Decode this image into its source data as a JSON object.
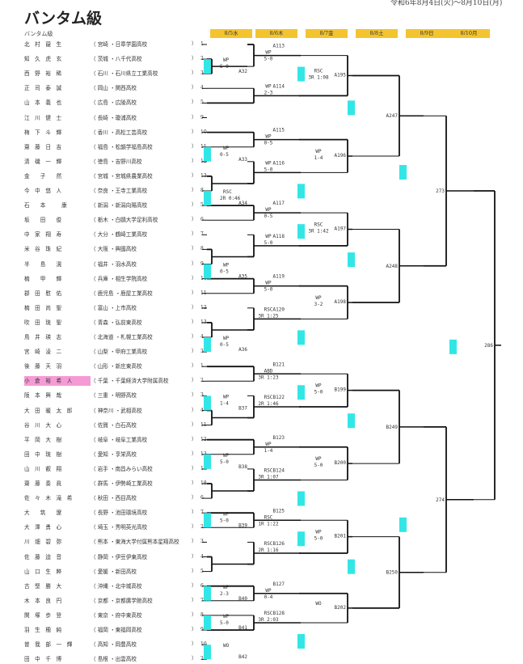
{
  "title": "バンタム級",
  "date_range": "令和6年8月4日(火)〜8月10日(月)",
  "weight_class_label": "バンタム級",
  "days": [
    "8/5水",
    "8/6木",
    "8/7金",
    "8/8土",
    "8/9日",
    "8/10月"
  ],
  "highlight_color": "#f49bd5",
  "marker_color": "#33e6e6",
  "entries": [
    {
      "name": "北　村　龍　生",
      "pref": "宮崎",
      "school": "日章学園高校",
      "seed": "1"
    },
    {
      "name": "知　久　虎　玄",
      "pref": "茨城",
      "school": "八千代高校",
      "seed": "2"
    },
    {
      "name": "西　野　裕　稀",
      "pref": "石川",
      "school": "石川県立工業高校",
      "seed": "3"
    },
    {
      "name": "正　司　泰　誠",
      "pref": "岡山",
      "school": "関西高校",
      "seed": "4"
    },
    {
      "name": "山　本　義　也",
      "pref": "広島",
      "school": "広陵高校",
      "seed": "5"
    },
    {
      "name": "江　川　健　士",
      "pref": "長崎",
      "school": "瓊浦高校",
      "seed": "9"
    },
    {
      "name": "梅　下　斗　輝",
      "pref": "香川",
      "school": "高松工芸高校",
      "seed": "10"
    },
    {
      "name": "齋　藤　日　吉",
      "pref": "福島",
      "school": "松韻学福島高校",
      "seed": "11"
    },
    {
      "name": "清　磯　一　輝",
      "pref": "徳島",
      "school": "吉野川高校",
      "seed": "12"
    },
    {
      "name": "金　　子　　然",
      "pref": "宮城",
      "school": "宮城県農業高校",
      "seed": "13"
    },
    {
      "name": "今　中　悠　人",
      "pref": "奈良",
      "school": "王寺工業高校",
      "seed": "8"
    },
    {
      "name": "石　　本　　　康",
      "pref": "新潟",
      "school": "新潟向陽高校",
      "seed": "5"
    },
    {
      "name": "坂　　田　　俊",
      "pref": "栃木",
      "school": "白鷗大学足利高校",
      "seed": "6"
    },
    {
      "name": "中　家　翔　寿",
      "pref": "大分",
      "school": "鶴崎工業高校",
      "seed": "7"
    },
    {
      "name": "米　谷　珠　紀",
      "pref": "大阪",
      "school": "興國高校",
      "seed": "8"
    },
    {
      "name": "半　　島　　滉",
      "pref": "福井",
      "school": "羽水高校",
      "seed": "9"
    },
    {
      "name": "楠　　甲　　輝",
      "pref": "兵庫",
      "school": "相生学院高校",
      "seed": "10"
    },
    {
      "name": "郡　田　慰　佑",
      "pref": "鹿児島",
      "school": "鹿屋工業高校",
      "seed": "11"
    },
    {
      "name": "楠　田　尚　聖",
      "pref": "富山",
      "school": "上市高校",
      "seed": "12"
    },
    {
      "name": "吹　田　琉　聖",
      "pref": "青森",
      "school": "弘前東高校",
      "seed": "13"
    },
    {
      "name": "鳥　井　瑛　志",
      "pref": "北海道",
      "school": "札幌工業高校",
      "seed": "4"
    },
    {
      "name": "宮　崎　淩　二",
      "pref": "山梨",
      "school": "甲府工業高校",
      "seed": "3"
    },
    {
      "name": "後　藤　天　羽",
      "pref": "山形",
      "school": "新庄東高校",
      "seed": "1"
    },
    {
      "name": "小　倉　裕　希　人",
      "pref": "千葉",
      "school": "千葉経済大学附属高校",
      "seed": "2",
      "highlight": true
    },
    {
      "name": "阪　本　興　哉",
      "pref": "三重",
      "school": "明野高校",
      "seed": "3"
    },
    {
      "name": "大　田　暖　太　郎",
      "pref": "神奈川",
      "school": "武相高校",
      "seed": "4"
    },
    {
      "name": "谷　川　大　心",
      "pref": "佐賀",
      "school": "白石高校",
      "seed": "11"
    },
    {
      "name": "平　岡　大　樹",
      "pref": "岐阜",
      "school": "岐阜工業高校",
      "seed": "12"
    },
    {
      "name": "田　中　琉　樹",
      "pref": "愛知",
      "school": "享栄高校",
      "seed": "13"
    },
    {
      "name": "山　川　叡　翔",
      "pref": "岩手",
      "school": "南昌みらい高校",
      "seed": "17"
    },
    {
      "name": "齋　藤　奏　眞",
      "pref": "群馬",
      "school": "伊勢崎工業高校",
      "seed": "18"
    },
    {
      "name": "佐　々　木　滝　希",
      "pref": "秋田",
      "school": "西目高校",
      "seed": "6"
    },
    {
      "name": "大　　筑　　遼",
      "pref": "長野",
      "school": "池田環境高校",
      "seed": "7"
    },
    {
      "name": "大　澤　勇　心",
      "pref": "埼玉",
      "school": "秀明英光高校",
      "seed": "2"
    },
    {
      "name": "川　畑　碧　弥",
      "pref": "熊本",
      "school": "東海大学付属熊本星翔高校",
      "seed": "3"
    },
    {
      "name": "佐　藤　迫　音",
      "pref": "静岡",
      "school": "伊豆伊東高校",
      "seed": "4"
    },
    {
      "name": "山　口　生　粹",
      "pref": "愛媛",
      "school": "新田高校",
      "seed": "5"
    },
    {
      "name": "古　堅　勝　大",
      "pref": "沖縄",
      "school": "北中城高校",
      "seed": "6"
    },
    {
      "name": "木　本　良　円",
      "pref": "京都",
      "school": "京都廣学館高校",
      "seed": "7"
    },
    {
      "name": "関　塚　歩　登",
      "pref": "東京",
      "school": "府中東高校",
      "seed": "8"
    },
    {
      "name": "羽　生　穂　純",
      "pref": "福岡",
      "school": "東福岡高校",
      "seed": "9"
    },
    {
      "name": "曽　我　部　一　輝",
      "pref": "高知",
      "school": "岡豊高校",
      "seed": "10"
    },
    {
      "name": "田　中　千　博",
      "pref": "島根",
      "school": "出雲高校",
      "seed": "2"
    }
  ],
  "matches": {
    "r1": [
      {
        "id": "A32",
        "result": "WP",
        "score": "5-0"
      },
      {
        "id": "A33",
        "result": "WP",
        "score": "0-5"
      },
      {
        "id": "A34",
        "result": "RSC",
        "score": "2R 0:46"
      },
      {
        "id": "A35",
        "result": "WP",
        "score": "0-5"
      },
      {
        "id": "A36",
        "result": "WP",
        "score": "0-5"
      },
      {
        "id": "B37",
        "result": "WP",
        "score": "1-4"
      },
      {
        "id": "B38",
        "result": "WP",
        "score": "5-0"
      },
      {
        "id": "B39",
        "result": "WP",
        "score": "5-0"
      },
      {
        "id": "B40",
        "result": "WP",
        "score": "2-3"
      },
      {
        "id": "B41",
        "result": "WP",
        "score": "5-0"
      },
      {
        "id": "B42",
        "result": "WO",
        "score": ""
      }
    ],
    "r2": [
      {
        "id": "A113",
        "result": "WP",
        "score": "5-0"
      },
      {
        "id": "A114",
        "result": "WP",
        "score": "2-3"
      },
      {
        "id": "A115",
        "result": "WP",
        "score": "0-5"
      },
      {
        "id": "A116",
        "result": "WP",
        "score": "5-0"
      },
      {
        "id": "A117",
        "result": "WP",
        "score": "0-5"
      },
      {
        "id": "A118",
        "result": "WP",
        "score": "5-0"
      },
      {
        "id": "A119",
        "result": "WP",
        "score": "5-0"
      },
      {
        "id": "A120",
        "result": "RSC",
        "score": "3R 1:25"
      },
      {
        "id": "B121",
        "result": "ABD",
        "score": "3R 1:23"
      },
      {
        "id": "B122",
        "result": "RSC",
        "score": "2R 1:46"
      },
      {
        "id": "B123",
        "result": "WP",
        "score": "1-4"
      },
      {
        "id": "B124",
        "result": "RSC",
        "score": "3R 1:07"
      },
      {
        "id": "B125",
        "result": "RSC",
        "score": "1R 1:22"
      },
      {
        "id": "B126",
        "result": "RSC",
        "score": "2R 1:16"
      },
      {
        "id": "B127",
        "result": "WP",
        "score": "0-4"
      },
      {
        "id": "B128",
        "result": "RSC",
        "score": "3R 2:03"
      }
    ],
    "r3": [
      {
        "id": "A195",
        "result": "RSC",
        "score": "3R 1:08"
      },
      {
        "id": "A196",
        "result": "WP",
        "score": "1-4"
      },
      {
        "id": "A197",
        "result": "RSC",
        "score": "3R 1:42"
      },
      {
        "id": "A198",
        "result": "WP",
        "score": "3-2"
      },
      {
        "id": "B199",
        "result": "WP",
        "score": "5-0"
      },
      {
        "id": "B200",
        "result": "WP",
        "score": "5-0"
      },
      {
        "id": "B201",
        "result": "WP",
        "score": "5-0"
      },
      {
        "id": "B202",
        "result": "WO",
        "score": ""
      }
    ],
    "qf": [
      "A247",
      "A248",
      "B249",
      "B250"
    ],
    "sf": [
      "273",
      "274"
    ],
    "final": "286"
  }
}
